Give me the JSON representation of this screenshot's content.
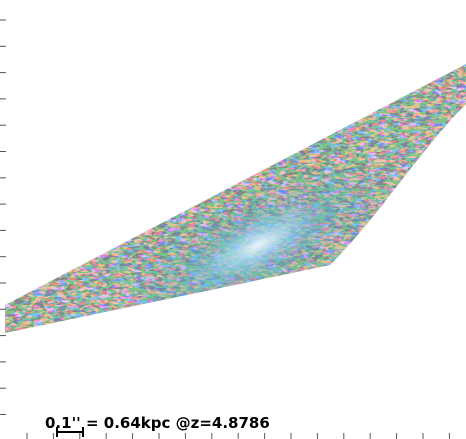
{
  "scale_bar": {
    "label": "0.1'' = 0.64kpc @z=4.8786"
  }
}
